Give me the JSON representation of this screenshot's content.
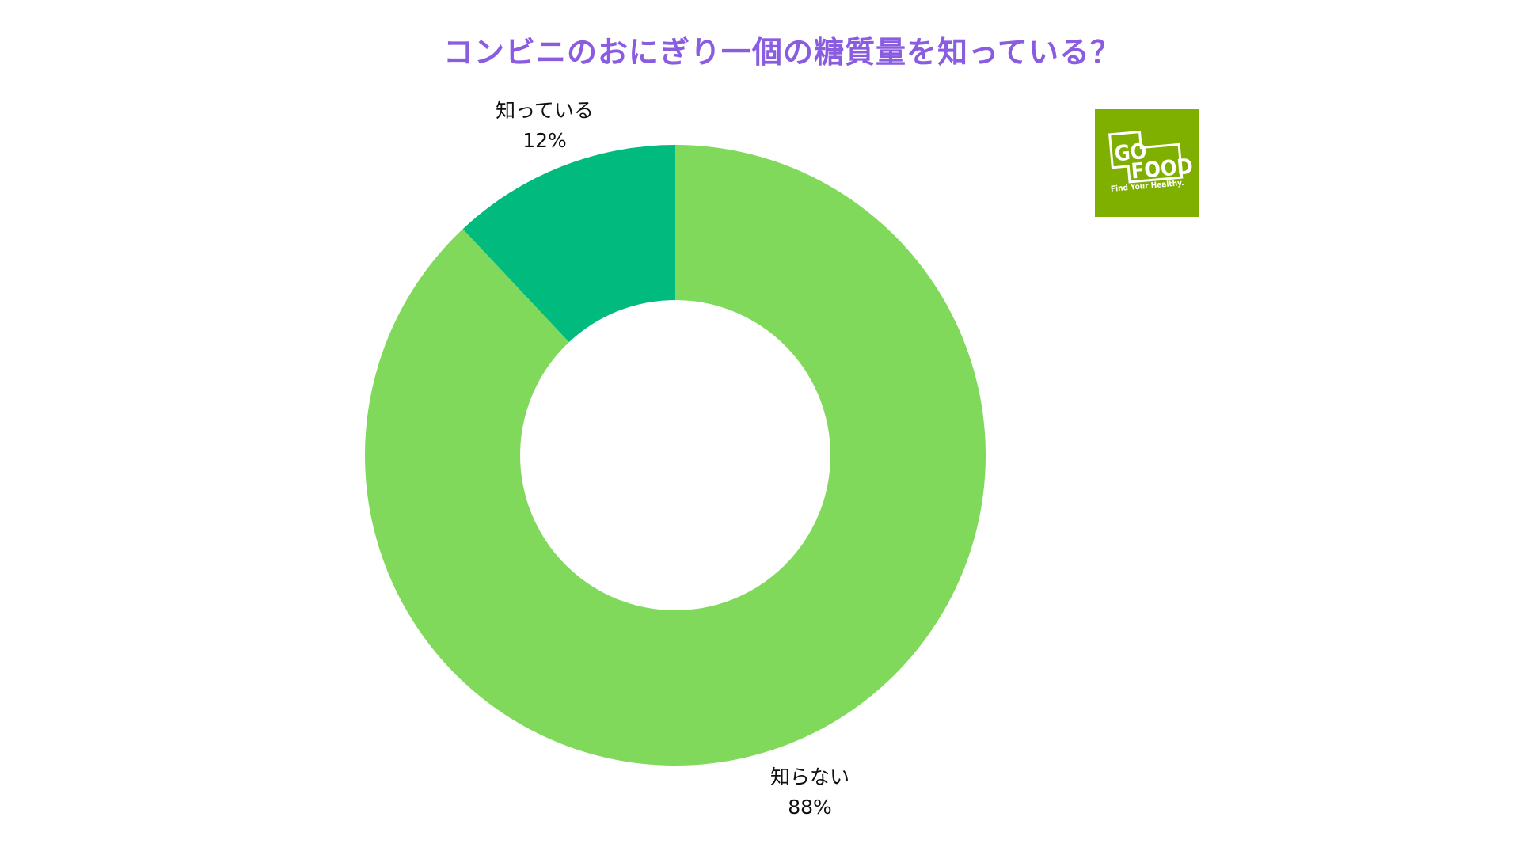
{
  "title": "コンビニのおにぎり一個の糖質量を知っている？",
  "logo": {
    "line1": "GO",
    "line2": "FOOD",
    "tagline": "Find Your Healthy.",
    "background_color": "#7FB000"
  },
  "labels": {
    "known": {
      "name": "知っている",
      "percent": "12%"
    },
    "unknown": {
      "name": "知らない",
      "percent": "88%"
    }
  },
  "colors": {
    "title": "#8A5CE0",
    "known": "#00BA7E",
    "unknown": "#80D95B"
  },
  "chart_data": {
    "type": "pie",
    "variant": "donut",
    "title": "コンビニのおにぎり一個の糖質量を知っている？",
    "categories": [
      "知っている",
      "知らない"
    ],
    "values": [
      12,
      88
    ],
    "unit": "%",
    "colors": [
      "#00BA7E",
      "#80D95B"
    ],
    "start_angle_deg": 0,
    "direction": "counterclockwise-from-top for 知っている; remainder 知らない",
    "inner_radius_ratio": 0.5,
    "legend": "none (inline labels)"
  }
}
